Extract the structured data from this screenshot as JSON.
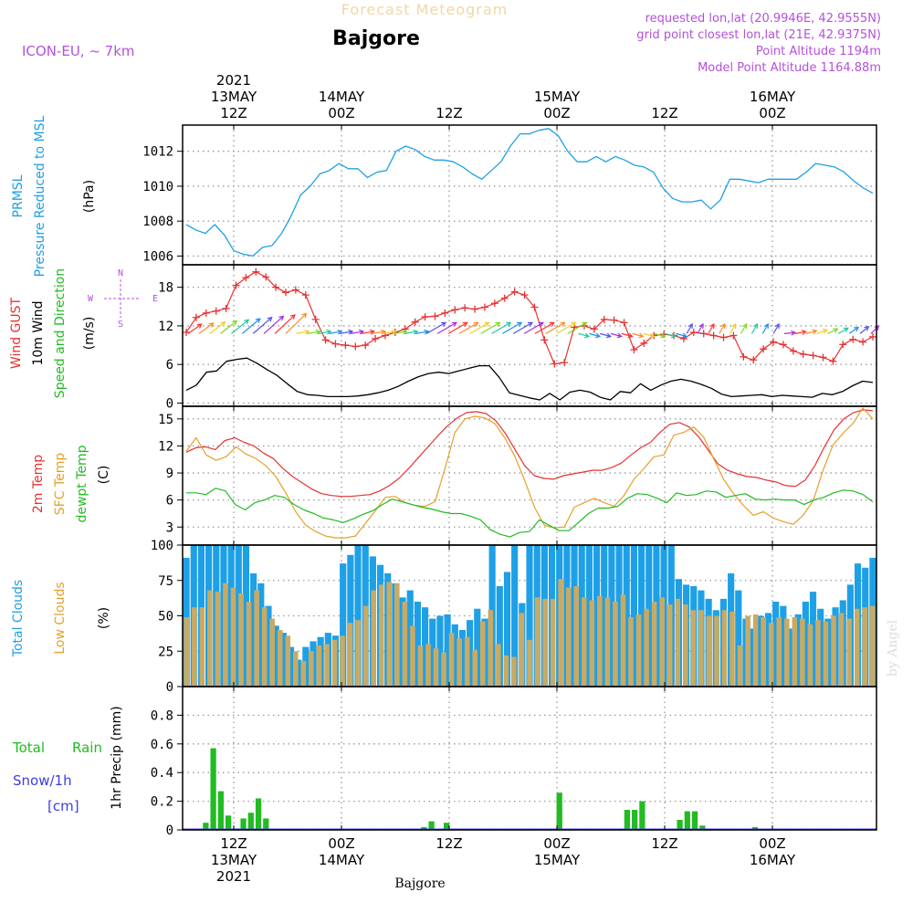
{
  "header": {
    "title": "Forecast Meteogram",
    "location": "Bajgore",
    "model": "ICON-EU, ~ 7km",
    "requested": "requested lon,lat (20.9946E, 42.9555N)",
    "grid_point": "grid point closest lon,lat (21E, 42.9375N)",
    "point_altitude": "Point Altitude 1194m",
    "model_altitude": "Model Point Altitude 1164.88m",
    "watermark": "by Angel",
    "footer": "Bajgore"
  },
  "colors": {
    "pressure": "#1ea0e6",
    "gust": "#e63232",
    "wind": "#000000",
    "winddir": "#22bb22",
    "temp": "#e63232",
    "sfc": "#e6a028",
    "dew": "#22bb22",
    "total_cloud": "#1ea0e6",
    "low_cloud": "#c8aa64",
    "rain": "#22bb22",
    "snow": "#3c3ce6",
    "compass": "#b450dc"
  },
  "time_axis": {
    "top_labels": [
      {
        "lines": [
          "2021",
          "13MAY",
          "12Z"
        ]
      },
      {
        "lines": [
          "14MAY",
          "00Z"
        ]
      },
      {
        "lines": [
          "12Z"
        ]
      },
      {
        "lines": [
          "15MAY",
          "00Z"
        ]
      },
      {
        "lines": [
          "12Z"
        ]
      },
      {
        "lines": [
          "16MAY",
          "00Z"
        ]
      }
    ],
    "bottom_labels": [
      {
        "lines": [
          "12Z",
          "13MAY",
          "2021"
        ]
      },
      {
        "lines": [
          "00Z",
          "14MAY"
        ]
      },
      {
        "lines": [
          "12Z"
        ]
      },
      {
        "lines": [
          "00Z",
          "15MAY"
        ]
      },
      {
        "lines": [
          "12Z"
        ]
      },
      {
        "lines": [
          "00Z",
          "16MAY"
        ]
      }
    ]
  },
  "panels": {
    "pressure": {
      "label1": "PRMSL",
      "label2": "Pressure Reduced to MSL",
      "unit": "(hPa)"
    },
    "wind": {
      "label1": "Wind GUST",
      "label2": "10m Wind",
      "label3": "Speed and Direction",
      "unit": "(m/s)"
    },
    "temp": {
      "label1": "2m Temp",
      "label2": "SFC Temp",
      "label3": "dewpt Temp",
      "unit": "(C)"
    },
    "cloud": {
      "label1": "Total Clouds",
      "label2": "Low Clouds",
      "unit": "(%)"
    },
    "precip": {
      "label1": "Total",
      "label1b": "Rain",
      "label2": "Snow/1h",
      "label3": "[cm]",
      "unit": "1hr Precip (mm)"
    }
  },
  "compass": {
    "n": "N",
    "s": "S",
    "e": "E",
    "w": "W"
  },
  "chart_data": [
    {
      "type": "line",
      "name": "PRMSL",
      "x_hours": "hours after 2021-05-13 07Z, hourly 0..64",
      "ylabel": "(hPa)",
      "ylim": [
        1005.5,
        1013.5
      ],
      "yticks": [
        1006,
        1008,
        1010,
        1012
      ],
      "values": [
        1007.8,
        1007.5,
        1007.3,
        1007.8,
        1007.2,
        1006.3,
        1006.1,
        1006.0,
        1006.5,
        1006.6,
        1007.3,
        1008.3,
        1009.5,
        1010.0,
        1010.7,
        1010.9,
        1011.3,
        1011.0,
        1011.0,
        1010.5,
        1010.8,
        1010.9,
        1012.0,
        1012.3,
        1012.1,
        1011.7,
        1011.5,
        1011.5,
        1011.4,
        1011.1,
        1010.7,
        1010.4,
        1010.9,
        1011.4,
        1012.3,
        1013.0,
        1013.0,
        1013.2,
        1013.3,
        1012.9,
        1012.0,
        1011.4,
        1011.4,
        1011.7,
        1011.4,
        1011.7,
        1011.5,
        1011.2,
        1011.1,
        1010.8,
        1009.9,
        1009.3,
        1009.1,
        1009.1,
        1009.2,
        1008.7,
        1009.2,
        1010.4,
        1010.4,
        1010.3,
        1010.2,
        1010.4,
        1010.4,
        1010.4,
        1010.4,
        1010.8,
        1011.3,
        1011.2,
        1011.1,
        1010.8,
        1010.3,
        1009.9,
        1009.6
      ]
    },
    {
      "type": "line",
      "name": "Wind",
      "ylabel": "(m/s)",
      "ylim": [
        -0.5,
        21.5
      ],
      "yticks": [
        0,
        6,
        12,
        18
      ],
      "gust": [
        11.0,
        13.3,
        14.0,
        14.3,
        14.7,
        18.3,
        19.5,
        20.4,
        19.6,
        18.0,
        17.2,
        17.6,
        16.8,
        13.0,
        9.8,
        9.2,
        9.0,
        8.8,
        9.0,
        10.0,
        10.5,
        11.0,
        11.5,
        12.6,
        13.4,
        13.5,
        14.0,
        14.5,
        14.8,
        14.6,
        14.9,
        15.5,
        16.3,
        17.3,
        16.8,
        14.9,
        9.8,
        6.1,
        6.3,
        11.8,
        12.0,
        11.5,
        13.0,
        12.9,
        12.5,
        8.3,
        9.3,
        10.5,
        10.7,
        10.5,
        10.0,
        11.0,
        10.8,
        10.5,
        10.2,
        10.5,
        7.2,
        6.7,
        8.4,
        9.5,
        9.1,
        8.1,
        7.6,
        7.4,
        7.1,
        6.5,
        9.1,
        9.9,
        9.5,
        10.3
      ],
      "wind": [
        2.0,
        2.8,
        4.8,
        5.0,
        6.5,
        6.8,
        7.0,
        6.2,
        5.2,
        4.3,
        3.0,
        1.8,
        1.3,
        1.2,
        1.0,
        1.0,
        1.0,
        1.1,
        1.3,
        1.6,
        2.0,
        2.6,
        3.4,
        4.1,
        4.6,
        4.8,
        4.6,
        5.0,
        5.4,
        5.8,
        5.8,
        4.0,
        1.6,
        1.2,
        0.8,
        0.5,
        1.5,
        0.5,
        1.7,
        2.0,
        1.7,
        0.9,
        0.5,
        1.8,
        1.6,
        3.0,
        2.0,
        2.8,
        3.4,
        3.7,
        3.4,
        2.9,
        2.3,
        1.4,
        1.0,
        1.1,
        1.2,
        1.3,
        1.0,
        1.2,
        1.1,
        1.0,
        0.9,
        1.5,
        1.3,
        1.8,
        2.7,
        3.4,
        3.2
      ]
    },
    {
      "type": "line",
      "name": "Temperature",
      "ylabel": "(C)",
      "ylim": [
        1.0,
        16.4
      ],
      "yticks": [
        3,
        6,
        9,
        12,
        15
      ],
      "temp2m": [
        11.3,
        11.8,
        11.9,
        11.6,
        12.6,
        12.9,
        12.4,
        12.0,
        11.2,
        10.6,
        9.5,
        8.6,
        7.9,
        7.2,
        6.7,
        6.5,
        6.4,
        6.4,
        6.5,
        6.6,
        7.0,
        7.6,
        8.4,
        9.5,
        10.7,
        11.9,
        13.1,
        14.2,
        15.1,
        15.7,
        15.8,
        15.6,
        14.8,
        13.4,
        11.6,
        9.8,
        8.7,
        8.4,
        8.3,
        8.7,
        8.9,
        9.1,
        9.3,
        9.3,
        9.6,
        10.1,
        11.0,
        11.8,
        12.4,
        13.5,
        14.4,
        14.6,
        14.1,
        13.0,
        11.5,
        10.0,
        9.3,
        8.9,
        8.6,
        8.5,
        8.2,
        8.0,
        7.6,
        7.5,
        8.2,
        9.8,
        11.9,
        13.8,
        15.0,
        15.7,
        16.0,
        15.9
      ],
      "sfc": [
        11.4,
        12.9,
        11.0,
        10.4,
        10.8,
        11.9,
        11.1,
        10.6,
        9.8,
        8.6,
        6.8,
        4.7,
        3.2,
        2.5,
        2.0,
        1.8,
        1.8,
        2.0,
        3.4,
        4.8,
        6.3,
        6.4,
        5.7,
        5.4,
        5.3,
        5.8,
        9.5,
        13.5,
        15.0,
        15.3,
        15.1,
        14.5,
        12.9,
        10.9,
        8.2,
        5.2,
        3.2,
        2.9,
        3.0,
        5.2,
        5.7,
        6.2,
        5.7,
        5.3,
        6.5,
        8.3,
        9.5,
        10.8,
        11.0,
        13.2,
        13.5,
        14.1,
        13.0,
        10.6,
        8.3,
        6.7,
        5.4,
        4.3,
        4.7,
        4.0,
        3.6,
        3.3,
        4.3,
        5.9,
        9.3,
        12.1,
        13.4,
        14.5,
        16.2,
        15.0
      ],
      "dew": [
        6.8,
        6.8,
        6.6,
        7.3,
        7.0,
        5.5,
        4.9,
        5.7,
        6.0,
        6.5,
        6.3,
        5.5,
        4.9,
        4.5,
        4.0,
        3.8,
        3.5,
        3.9,
        4.4,
        4.8,
        5.5,
        6.1,
        5.8,
        5.5,
        5.2,
        5.0,
        4.7,
        4.5,
        4.5,
        4.2,
        3.8,
        2.7,
        2.2,
        1.9,
        2.4,
        2.5,
        3.8,
        3.2,
        2.6,
        2.6,
        3.5,
        4.5,
        5.1,
        5.1,
        5.3,
        6.2,
        6.7,
        6.6,
        6.2,
        5.7,
        6.8,
        6.5,
        6.6,
        7.0,
        6.9,
        6.3,
        6.5,
        6.7,
        6.1,
        6.0,
        6.1,
        6.0,
        6.0,
        5.5,
        6.0,
        6.3,
        6.8,
        7.1,
        7.0,
        6.6,
        5.8
      ]
    },
    {
      "type": "bar",
      "name": "Clouds",
      "ylabel": "(%)",
      "ylim": [
        0,
        100
      ],
      "yticks": [
        0,
        25,
        50,
        75,
        100
      ],
      "total": [
        91,
        100,
        100,
        100,
        100,
        100,
        100,
        100,
        100,
        80,
        73,
        57,
        43,
        38,
        28,
        19,
        28,
        32,
        35,
        38,
        36,
        87,
        93,
        100,
        100,
        92,
        86,
        80,
        73,
        63,
        68,
        60,
        56,
        48,
        50,
        51,
        44,
        40,
        47,
        55,
        48,
        100,
        71,
        81,
        100,
        59,
        100,
        100,
        100,
        100,
        100,
        100,
        100,
        100,
        100,
        100,
        100,
        100,
        100,
        100,
        100,
        100,
        100,
        100,
        100,
        100,
        76,
        72,
        71,
        68,
        62,
        54,
        62,
        80,
        68,
        48,
        41,
        50,
        52,
        60,
        57,
        41,
        51,
        60,
        67,
        55,
        48,
        56,
        61,
        72,
        87,
        84,
        91
      ],
      "low": [
        49,
        56,
        56,
        68,
        67,
        73,
        70,
        66,
        60,
        68,
        56,
        48,
        40,
        36,
        25,
        18,
        25,
        29,
        30,
        33,
        36,
        45,
        47,
        57,
        68,
        72,
        74,
        73,
        60,
        43,
        29,
        30,
        27,
        24,
        38,
        34,
        35,
        26,
        46,
        54,
        30,
        22,
        21,
        52,
        33,
        63,
        62,
        62,
        76,
        70,
        71,
        63,
        61,
        64,
        63,
        60,
        65,
        49,
        51,
        55,
        60,
        63,
        58,
        62,
        58,
        54,
        54,
        50,
        50,
        54,
        53,
        29,
        50,
        51,
        49,
        45,
        49,
        48,
        49,
        48,
        44,
        47,
        46,
        50,
        52,
        48,
        55,
        56,
        57
      ]
    },
    {
      "type": "bar",
      "name": "Precipitation",
      "ylabel": "1hr Precip (mm)",
      "ylim": [
        0,
        1.0
      ],
      "yticks": [
        0,
        0.2,
        0.4,
        0.6,
        0.8
      ],
      "rain": [
        0.0,
        0.05,
        0.57,
        0.27,
        0.1,
        0.01,
        0.08,
        0.12,
        0.22,
        0.08,
        0,
        0,
        0,
        0,
        0,
        0,
        0,
        0,
        0,
        0,
        0,
        0,
        0,
        0,
        0,
        0,
        0,
        0,
        0,
        0,
        0.02,
        0.06,
        0,
        0.05,
        0,
        0,
        0,
        0,
        0,
        0,
        0,
        0,
        0,
        0,
        0,
        0,
        0,
        0,
        0.26,
        0,
        0,
        0,
        0,
        0,
        0,
        0,
        0,
        0.14,
        0.14,
        0.2,
        0,
        0,
        0,
        0,
        0.07,
        0.13,
        0.13,
        0.03,
        0,
        0,
        0,
        0,
        0,
        0,
        0.02,
        0,
        0,
        0,
        0,
        0,
        0,
        0,
        0,
        0,
        0,
        0,
        0,
        0,
        0,
        0,
        0
      ]
    }
  ]
}
